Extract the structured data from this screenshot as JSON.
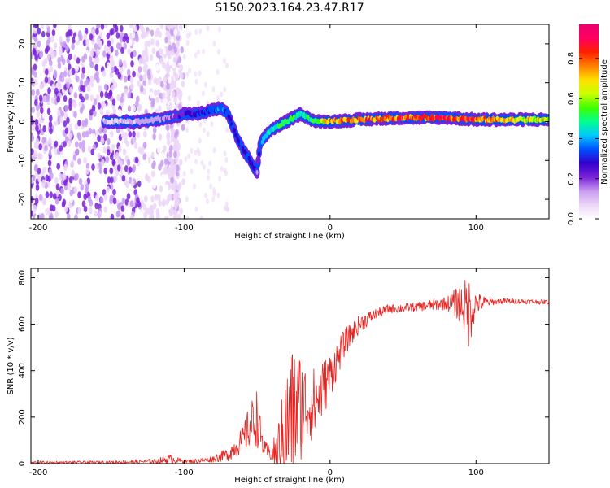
{
  "title": "S150.2023.164.23.47.R17",
  "chart_data": [
    {
      "type": "heatmap",
      "xlabel": "Height of straight line (km)",
      "ylabel": "Frequency (Hz)",
      "xlim": [
        -205,
        150
      ],
      "ylim": [
        -25,
        25
      ],
      "xticks": [
        -200,
        -100,
        0,
        100
      ],
      "yticks": [
        -20,
        -10,
        0,
        10,
        20
      ],
      "colorbar": {
        "label": "Normalized spectral amplitude",
        "range": [
          0,
          0.97
        ],
        "ticks": [
          0.0,
          0.2,
          0.4,
          0.6,
          0.8
        ],
        "colors": [
          "#ffffff",
          "#ecd6f8",
          "#c89cf0",
          "#7a22d8",
          "#3300cc",
          "#0050ff",
          "#00c8ff",
          "#00ff90",
          "#40ff00",
          "#c8ff00",
          "#ffe000",
          "#ff8000",
          "#ff2000",
          "#ff0060",
          "#e8006c"
        ]
      },
      "ridge": {
        "x": [
          -150,
          -130,
          -110,
          -100,
          -90,
          -80,
          -75,
          -70,
          -65,
          -60,
          -55,
          -52,
          -50,
          -48,
          -45,
          -40,
          -35,
          -30,
          -25,
          -20,
          -15,
          -10,
          0,
          20,
          50,
          80,
          100,
          120,
          150
        ],
        "freq": [
          0,
          0,
          1,
          2,
          2,
          3,
          3.5,
          2,
          -3,
          -7,
          -10,
          -12,
          -13,
          -6,
          -4,
          -2,
          -1,
          0,
          1,
          2,
          1,
          0,
          0,
          0.5,
          1,
          1,
          0.5,
          0.5,
          0.5
        ],
        "amplitude": [
          0.1,
          0.12,
          0.18,
          0.25,
          0.3,
          0.35,
          0.4,
          0.3,
          0.3,
          0.3,
          0.3,
          0.25,
          0.2,
          0.35,
          0.4,
          0.45,
          0.5,
          0.55,
          0.5,
          0.45,
          0.5,
          0.55,
          0.75,
          0.8,
          0.85,
          0.85,
          0.8,
          0.7,
          0.65
        ]
      },
      "noise_region_x": [
        -205,
        -100
      ]
    },
    {
      "type": "line",
      "xlabel": "Height of straight line (km)",
      "ylabel": "SNR (10 * v/v)",
      "xlim": [
        -205,
        150
      ],
      "ylim": [
        0,
        840
      ],
      "xticks": [
        -200,
        -100,
        0,
        100
      ],
      "yticks": [
        0,
        200,
        400,
        600,
        800
      ],
      "color": "#e8221e",
      "envelope": {
        "x": [
          -205,
          -150,
          -120,
          -110,
          -100,
          -90,
          -80,
          -70,
          -60,
          -55,
          -50,
          -48,
          -45,
          -40,
          -35,
          -30,
          -25,
          -20,
          -15,
          -10,
          -5,
          0,
          10,
          20,
          30,
          40,
          60,
          80,
          90,
          95,
          100,
          110,
          120,
          150
        ],
        "mean": [
          5,
          6,
          10,
          20,
          10,
          12,
          20,
          40,
          100,
          160,
          200,
          130,
          60,
          40,
          60,
          150,
          220,
          250,
          250,
          260,
          320,
          380,
          520,
          600,
          640,
          665,
          675,
          690,
          690,
          650,
          690,
          695,
          700,
          695
        ],
        "amp": [
          5,
          6,
          10,
          20,
          8,
          10,
          15,
          30,
          60,
          100,
          130,
          80,
          40,
          30,
          150,
          260,
          300,
          240,
          160,
          160,
          130,
          100,
          60,
          40,
          25,
          20,
          20,
          30,
          90,
          160,
          50,
          15,
          12,
          10
        ]
      }
    }
  ]
}
